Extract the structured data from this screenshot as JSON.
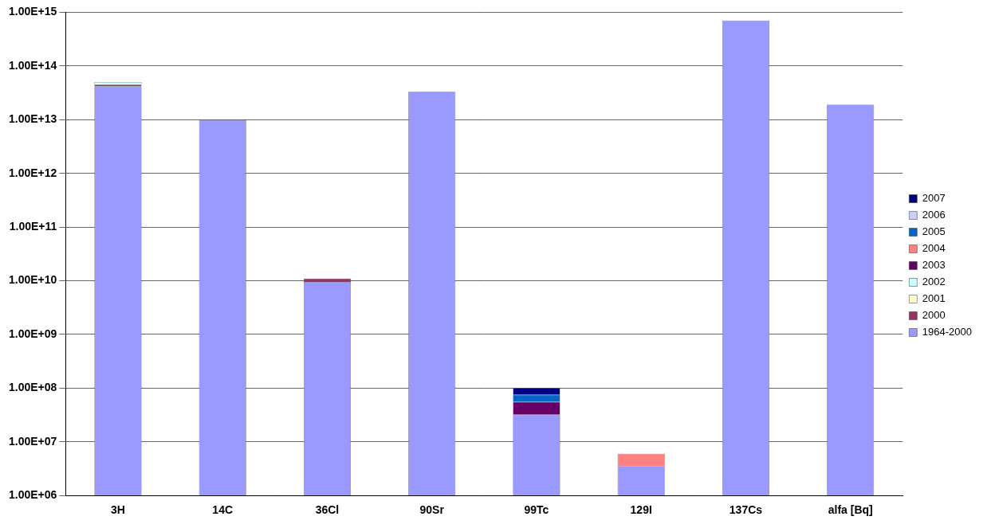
{
  "chart_data": {
    "type": "bar",
    "stacked": true,
    "log": "y",
    "grid": true,
    "legend": "right",
    "categories": [
      "3H",
      "14C",
      "36Cl",
      "90Sr",
      "99Tc",
      "129I",
      "137Cs",
      "alfa [Bq]"
    ],
    "ylim": [
      1000000,
      1000000000000000
    ],
    "yticks": [
      {
        "value": 1000000,
        "label": "1.00E+06"
      },
      {
        "value": 10000000,
        "label": "1.00E+07"
      },
      {
        "value": 100000000,
        "label": "1.00E+08"
      },
      {
        "value": 1000000000,
        "label": "1.00E+09"
      },
      {
        "value": 10000000000,
        "label": "1.00E+10"
      },
      {
        "value": 100000000000,
        "label": "1.00E+11"
      },
      {
        "value": 1000000000000,
        "label": "1.00E+12"
      },
      {
        "value": 10000000000000,
        "label": "1.00E+13"
      },
      {
        "value": 100000000000000,
        "label": "1.00E+14"
      },
      {
        "value": 1000000000000000,
        "label": "1.00E+15"
      }
    ],
    "series": [
      {
        "name": "1964-2000",
        "color": "#9999ff",
        "values": [
          42000000000000,
          10000000000000,
          9500000000,
          33000000000000,
          32000000,
          3500000,
          700000000000000,
          19000000000000
        ]
      },
      {
        "name": "2000",
        "color": "#993366",
        "values": [
          3000000000000,
          null,
          1500000000,
          null,
          null,
          null,
          null,
          null
        ]
      },
      {
        "name": "2001",
        "color": "#ffffcc",
        "values": [
          null,
          null,
          null,
          null,
          null,
          null,
          null,
          null
        ]
      },
      {
        "name": "2002",
        "color": "#ccffff",
        "values": [
          5000000000000,
          null,
          null,
          null,
          null,
          null,
          null,
          null
        ]
      },
      {
        "name": "2003",
        "color": "#660066",
        "values": [
          null,
          null,
          null,
          null,
          23000000,
          null,
          null,
          null
        ]
      },
      {
        "name": "2004",
        "color": "#ff8080",
        "values": [
          null,
          null,
          null,
          null,
          null,
          2500000,
          null,
          null
        ]
      },
      {
        "name": "2005",
        "color": "#0066cc",
        "values": [
          null,
          null,
          null,
          null,
          20000000,
          null,
          null,
          null
        ]
      },
      {
        "name": "2006",
        "color": "#ccccff",
        "values": [
          null,
          null,
          null,
          null,
          null,
          null,
          null,
          null
        ]
      },
      {
        "name": "2007",
        "color": "#000080",
        "values": [
          null,
          null,
          null,
          null,
          25000000,
          null,
          null,
          null
        ]
      }
    ]
  }
}
